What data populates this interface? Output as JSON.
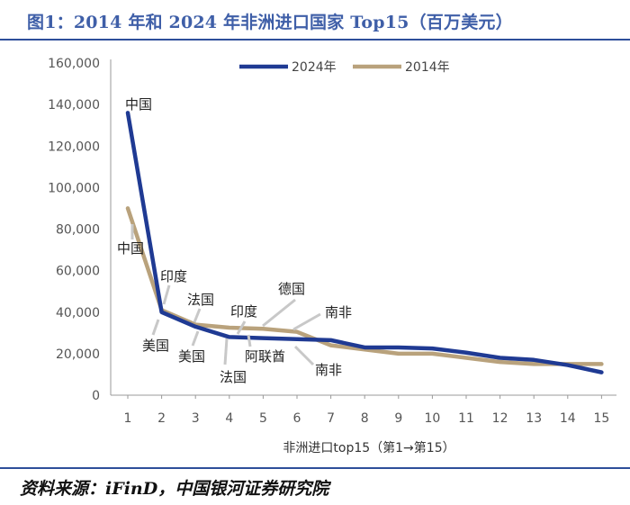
{
  "header": {
    "title": "图1：2014 年和 2024 年非洲进口国家 Top15（百万美元）"
  },
  "footer": {
    "source": "资料来源：iFinD，中国银河证券研究院"
  },
  "chart_data": {
    "type": "line",
    "title": "图1：2014 年和 2024 年非洲进口国家 Top15（百万美元）",
    "xlabel": "非洲进口top15（第1→第15）",
    "ylabel": "",
    "x": [
      1,
      2,
      3,
      4,
      5,
      6,
      7,
      8,
      9,
      10,
      11,
      12,
      13,
      14,
      15
    ],
    "x_ticks": [
      "1",
      "2",
      "3",
      "4",
      "5",
      "6",
      "7",
      "8",
      "9",
      "10",
      "11",
      "12",
      "13",
      "14",
      "15"
    ],
    "ylim": [
      0,
      160000
    ],
    "y_ticks": [
      "0",
      "20,000",
      "40,000",
      "60,000",
      "80,000",
      "100,000",
      "120,000",
      "140,000",
      "160,000"
    ],
    "legend_position": "top-right",
    "series": [
      {
        "name": "2024年",
        "color": "#1f3a93",
        "values": [
          136000,
          40000,
          33000,
          28000,
          27500,
          27000,
          26500,
          23000,
          23000,
          22500,
          20500,
          18000,
          17000,
          14500,
          11000
        ]
      },
      {
        "name": "2014年",
        "color": "#b9a27c",
        "values": [
          90000,
          41000,
          34000,
          32500,
          32000,
          30500,
          24000,
          22000,
          20000,
          20000,
          18000,
          16000,
          15000,
          15000,
          15000
        ]
      }
    ],
    "annotations": [
      {
        "text": "中国",
        "x": 1,
        "series": "2024年"
      },
      {
        "text": "中国",
        "x": 1,
        "series": "2014年"
      },
      {
        "text": "印度",
        "x": 2,
        "series": "2014年"
      },
      {
        "text": "美国",
        "x": 2,
        "series": "2024年"
      },
      {
        "text": "法国",
        "x": 3,
        "series": "2014年"
      },
      {
        "text": "美国",
        "x": 3,
        "series": "2024年"
      },
      {
        "text": "印度",
        "x": 4,
        "series": "2024年"
      },
      {
        "text": "法国",
        "x": 4,
        "series": "2024年"
      },
      {
        "text": "阿联酋",
        "x": 5,
        "series": "2024年"
      },
      {
        "text": "德国",
        "x": 5,
        "series": "2014年"
      },
      {
        "text": "南非",
        "x": 6,
        "series": "2014年"
      },
      {
        "text": "南非",
        "x": 6,
        "series": "2024年"
      }
    ]
  }
}
